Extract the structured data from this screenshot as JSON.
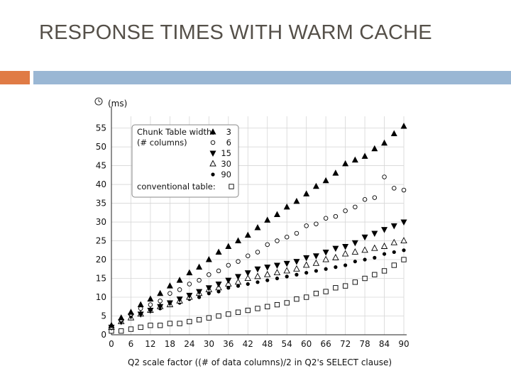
{
  "slide": {
    "title": "RESPONSE TIMES WITH WARM CACHE",
    "accent_color": "#E07B45",
    "bar_color": "#9AB7D4"
  },
  "chart_data": {
    "type": "scatter",
    "title": "",
    "xlabel": "Q2 scale factor ((# of data columns)/2 in Q2's SELECT clause)",
    "ylabel": "(ms)",
    "y_axis_icon": "clock-icon",
    "xlim": [
      0,
      90
    ],
    "ylim": [
      0,
      57
    ],
    "x_ticks": [
      0,
      6,
      12,
      18,
      24,
      30,
      36,
      42,
      48,
      54,
      60,
      66,
      72,
      78,
      84,
      90
    ],
    "y_ticks": [
      0,
      5,
      10,
      15,
      20,
      25,
      30,
      35,
      40,
      45,
      50,
      55
    ],
    "grid": true,
    "legend_position": "top-left",
    "legend": {
      "header_line1": "Chunk Table width:",
      "header_line2": "(# columns)",
      "conventional_label": "conventional table:"
    },
    "x": [
      0,
      3,
      6,
      9,
      12,
      15,
      18,
      21,
      24,
      27,
      30,
      33,
      36,
      39,
      42,
      45,
      48,
      51,
      54,
      57,
      60,
      63,
      66,
      69,
      72,
      75,
      78,
      81,
      84,
      87,
      90
    ],
    "series": [
      {
        "name": "3",
        "marker": "triangle-up",
        "color": "#000000",
        "values": [
          2.5,
          4.5,
          6,
          8,
          9.5,
          11,
          13,
          14.5,
          16.5,
          18,
          20,
          22,
          23.5,
          25,
          26.5,
          28.5,
          30.5,
          32,
          34,
          35.5,
          37.5,
          39.5,
          41,
          43,
          45.5,
          46.5,
          47.5,
          49.5,
          51,
          53.5,
          55.5
        ]
      },
      {
        "name": "6",
        "marker": "circle-open",
        "color": "#000000",
        "values": [
          2,
          4,
          5.5,
          7,
          8,
          9,
          11,
          12,
          13.5,
          14.5,
          16,
          17,
          18.5,
          19.5,
          21,
          22,
          24,
          25,
          26,
          27,
          29,
          29.5,
          31,
          31.5,
          33,
          34,
          36,
          36.5,
          42,
          39,
          38.5
        ]
      },
      {
        "name": "15",
        "marker": "triangle-down",
        "color": "#000000",
        "values": [
          2,
          3.5,
          5,
          5.5,
          6.5,
          7.5,
          8.5,
          9.5,
          10.5,
          11.5,
          12.5,
          13.5,
          14.5,
          15.5,
          16.5,
          17.5,
          18,
          18.5,
          19,
          19.5,
          20.5,
          21,
          22,
          23,
          23.5,
          24.5,
          26,
          27,
          28,
          29,
          30
        ]
      },
      {
        "name": "30",
        "marker": "triangle-open",
        "color": "#000000",
        "values": [
          2,
          3.5,
          4.5,
          5.5,
          6.5,
          7.5,
          8,
          9,
          10,
          11,
          12,
          12.5,
          13.5,
          14,
          15,
          15.5,
          16,
          16.5,
          17,
          17.5,
          18.5,
          19,
          20,
          20.5,
          21.5,
          22,
          22.5,
          23,
          23.5,
          24.5,
          25
        ]
      },
      {
        "name": "90",
        "marker": "circle-filled",
        "color": "#000000",
        "values": [
          2,
          3.5,
          4.5,
          5.5,
          6.5,
          7,
          8,
          8.5,
          9.5,
          10,
          11,
          11.5,
          12.5,
          13,
          13.5,
          14,
          14.5,
          15,
          15.5,
          16,
          16.5,
          17,
          17.5,
          18,
          18.5,
          19.5,
          20,
          20.5,
          21.5,
          22,
          22.5
        ]
      },
      {
        "name": "conventional table",
        "marker": "square-open",
        "color": "#000000",
        "values": [
          1,
          1,
          1.5,
          2,
          2.5,
          2.5,
          3,
          3,
          3.5,
          4,
          4.5,
          5,
          5.5,
          6,
          6.5,
          7,
          7.5,
          8,
          8.5,
          9.5,
          10,
          11,
          11.5,
          12.5,
          13,
          14,
          15,
          16,
          17,
          18.5,
          20
        ]
      }
    ]
  }
}
